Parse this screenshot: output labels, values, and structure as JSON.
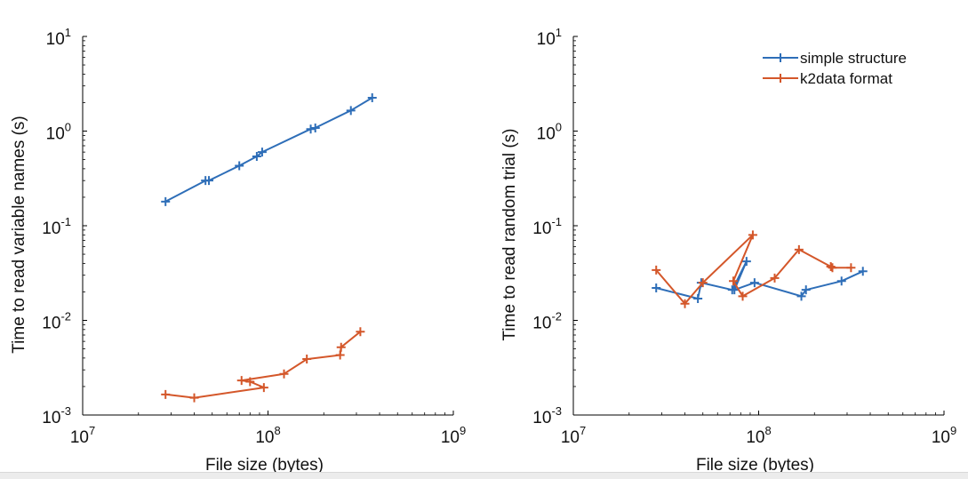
{
  "colors": {
    "simple": "#2e6eb8",
    "k2data": "#d4572a",
    "axis": "#000000"
  },
  "chart_data": [
    {
      "type": "line",
      "xlabel": "File size (bytes)",
      "ylabel": "Time to read variable names (s)",
      "xscale": "log",
      "yscale": "log",
      "xlim": [
        10000000,
        1000000000
      ],
      "ylim": [
        0.001,
        10
      ],
      "xticks": [
        {
          "base": "10",
          "exp": "7",
          "value": 10000000
        },
        {
          "base": "10",
          "exp": "8",
          "value": 100000000
        },
        {
          "base": "10",
          "exp": "9",
          "value": 1000000000
        }
      ],
      "yticks": [
        {
          "base": "10",
          "exp": "-3",
          "value": 0.001
        },
        {
          "base": "10",
          "exp": "-2",
          "value": 0.01
        },
        {
          "base": "10",
          "exp": "-1",
          "value": 0.1
        },
        {
          "base": "10",
          "exp": "0",
          "value": 1
        },
        {
          "base": "10",
          "exp": "1",
          "value": 10
        }
      ],
      "legend": null,
      "series": [
        {
          "name": "simple structure",
          "color_key": "simple",
          "marker": "+",
          "points": [
            [
              28000000,
              0.18
            ],
            [
              46000000,
              0.3
            ],
            [
              48000000,
              0.3
            ],
            [
              70000000,
              0.43
            ],
            [
              87000000,
              0.54
            ],
            [
              93000000,
              0.6
            ],
            [
              170000000,
              1.05
            ],
            [
              180000000,
              1.08
            ],
            [
              280000000,
              1.65
            ],
            [
              365000000,
              2.25
            ]
          ]
        },
        {
          "name": "k2data format",
          "color_key": "k2data",
          "marker": "+",
          "points": [
            [
              28000000,
              0.00165
            ],
            [
              40000000,
              0.00152
            ],
            [
              95000000,
              0.00195
            ],
            [
              80000000,
              0.00225
            ],
            [
              72000000,
              0.00232
            ],
            [
              122000000,
              0.00272
            ],
            [
              162000000,
              0.0039
            ],
            [
              245000000,
              0.0043
            ],
            [
              248000000,
              0.0052
            ],
            [
              315000000,
              0.0076
            ]
          ]
        }
      ]
    },
    {
      "type": "line",
      "xlabel": "File size (bytes)",
      "ylabel": "Time to read random trial (s)",
      "xscale": "log",
      "yscale": "log",
      "xlim": [
        10000000,
        1000000000
      ],
      "ylim": [
        0.001,
        10
      ],
      "xticks": [
        {
          "base": "10",
          "exp": "7",
          "value": 10000000
        },
        {
          "base": "10",
          "exp": "8",
          "value": 100000000
        },
        {
          "base": "10",
          "exp": "9",
          "value": 1000000000
        }
      ],
      "yticks": [
        {
          "base": "10",
          "exp": "-3",
          "value": 0.001
        },
        {
          "base": "10",
          "exp": "-2",
          "value": 0.01
        },
        {
          "base": "10",
          "exp": "-1",
          "value": 0.1
        },
        {
          "base": "10",
          "exp": "0",
          "value": 1
        },
        {
          "base": "10",
          "exp": "1",
          "value": 10
        }
      ],
      "legend": {
        "position": "top-right",
        "entries": [
          "simple structure",
          "k2data format"
        ]
      },
      "series": [
        {
          "name": "simple structure",
          "color_key": "simple",
          "marker": "+",
          "points": [
            [
              28000000,
              0.022
            ],
            [
              47000000,
              0.017
            ],
            [
              49000000,
              0.025
            ],
            [
              72000000,
              0.021
            ],
            [
              86000000,
              0.042
            ],
            [
              74000000,
              0.021
            ],
            [
              95000000,
              0.025
            ],
            [
              170000000,
              0.018
            ],
            [
              180000000,
              0.021
            ],
            [
              280000000,
              0.026
            ],
            [
              365000000,
              0.033
            ]
          ]
        },
        {
          "name": "k2data format",
          "color_key": "k2data",
          "marker": "+",
          "points": [
            [
              28000000,
              0.034
            ],
            [
              40000000,
              0.015
            ],
            [
              50000000,
              0.025
            ],
            [
              93000000,
              0.08
            ],
            [
              73000000,
              0.026
            ],
            [
              82000000,
              0.018
            ],
            [
              122000000,
              0.028
            ],
            [
              165000000,
              0.056
            ],
            [
              245000000,
              0.037
            ],
            [
              250000000,
              0.036
            ],
            [
              315000000,
              0.036
            ]
          ]
        }
      ]
    }
  ]
}
